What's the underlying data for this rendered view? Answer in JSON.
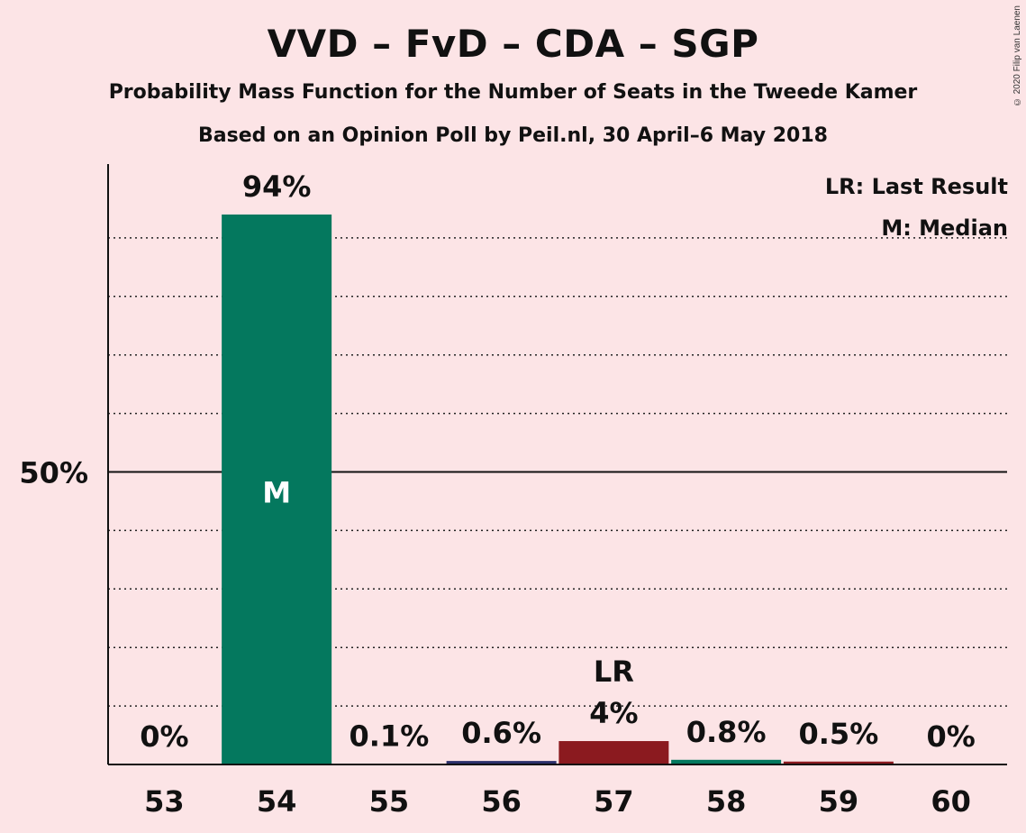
{
  "header": {
    "title": "VVD – FvD – CDA – SGP",
    "subtitle": "Probability Mass Function for the Number of Seats in the Tweede Kamer",
    "source": "Based on an Opinion Poll by Peil.nl, 30 April–6 May 2018",
    "copyright": "© 2020 Filip van Laenen"
  },
  "legend": {
    "lr": "LR: Last Result",
    "m": "M: Median"
  },
  "colors": {
    "background": "#fce4e6",
    "median_bar": "#04785e",
    "last_result_bar": "#8b1a1f",
    "other_bar": "#2b2f6b"
  },
  "chart_data": {
    "type": "bar",
    "categories": [
      "53",
      "54",
      "55",
      "56",
      "57",
      "58",
      "59",
      "60"
    ],
    "values": [
      0,
      94,
      0.1,
      0.6,
      4,
      0.8,
      0.5,
      0
    ],
    "labels": [
      "0%",
      "94%",
      "0.1%",
      "0.6%",
      "4%",
      "0.8%",
      "0.5%",
      "0%"
    ],
    "bar_colors": [
      "#04785e",
      "#04785e",
      "#2b2f6b",
      "#2b2f6b",
      "#8b1a1f",
      "#04785e",
      "#8b1a1f",
      "#04785e"
    ],
    "ylim": [
      0,
      100
    ],
    "yticks": [
      {
        "value": 50,
        "label": "50%"
      }
    ],
    "grid_step": 10,
    "median_category": "54",
    "median_marker": "M",
    "last_result_category": "57",
    "last_result_marker": "LR",
    "grid": true,
    "legend_position": "top-right"
  }
}
